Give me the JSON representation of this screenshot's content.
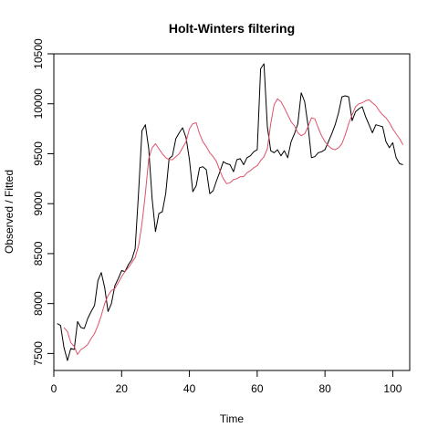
{
  "chart_data": {
    "type": "line",
    "title": "Holt-Winters filtering",
    "xlabel": "Time",
    "ylabel": "Observed / Fitted",
    "xlim": [
      0,
      105
    ],
    "ylim": [
      7330,
      10500
    ],
    "xticks": [
      0,
      20,
      40,
      60,
      80,
      100
    ],
    "yticks": [
      7500,
      8000,
      8500,
      9000,
      9500,
      10000,
      10500
    ],
    "grid": false,
    "legend": "none",
    "series": [
      {
        "color": "#000000",
        "x": [
          1,
          2,
          3,
          4,
          5,
          6,
          7,
          8,
          9,
          10,
          11,
          12,
          13,
          14,
          15,
          16,
          17,
          18,
          19,
          20,
          21,
          22,
          23,
          24,
          25,
          26,
          27,
          28,
          29,
          30,
          31,
          32,
          33,
          34,
          35,
          36,
          37,
          38,
          39,
          40,
          41,
          42,
          43,
          44,
          45,
          46,
          47,
          48,
          49,
          50,
          51,
          52,
          53,
          54,
          55,
          56,
          57,
          58,
          59,
          60,
          61,
          62,
          63,
          64,
          65,
          66,
          67,
          68,
          69,
          70,
          71,
          72,
          73,
          74,
          75,
          76,
          77,
          78,
          79,
          80,
          81,
          82,
          83,
          84,
          85,
          86,
          87,
          88,
          89,
          90,
          91,
          92,
          93,
          94,
          95,
          96,
          97,
          98,
          99,
          100,
          101,
          102,
          103
        ],
        "values": [
          7800,
          7780,
          7560,
          7430,
          7550,
          7540,
          7820,
          7760,
          7750,
          7850,
          7920,
          7980,
          8230,
          8310,
          8160,
          7920,
          8000,
          8180,
          8250,
          8330,
          8320,
          8390,
          8440,
          8550,
          9120,
          9730,
          9790,
          9550,
          9050,
          8720,
          8900,
          8920,
          9100,
          9450,
          9480,
          9650,
          9710,
          9760,
          9660,
          9440,
          9120,
          9180,
          9360,
          9370,
          9340,
          9100,
          9130,
          9230,
          9320,
          9420,
          9400,
          9390,
          9320,
          9440,
          9450,
          9390,
          9460,
          9480,
          9520,
          9540,
          10350,
          10400,
          9770,
          9530,
          9510,
          9540,
          9480,
          9530,
          9460,
          9620,
          9700,
          9800,
          10110,
          10020,
          9780,
          9460,
          9470,
          9510,
          9520,
          9540,
          9620,
          9700,
          9790,
          9910,
          10070,
          10080,
          10070,
          9830,
          9920,
          9950,
          9970,
          9870,
          9790,
          9710,
          9790,
          9780,
          9770,
          9620,
          9560,
          9610,
          9460,
          9400,
          9390
        ]
      },
      {
        "color": "#df536b",
        "x": [
          3,
          4,
          5,
          6,
          7,
          8,
          9,
          10,
          11,
          12,
          13,
          14,
          15,
          16,
          17,
          18,
          19,
          20,
          21,
          22,
          23,
          24,
          25,
          26,
          27,
          28,
          29,
          30,
          31,
          32,
          33,
          34,
          35,
          36,
          37,
          38,
          39,
          40,
          41,
          42,
          43,
          44,
          45,
          46,
          47,
          48,
          49,
          50,
          51,
          52,
          53,
          54,
          55,
          56,
          57,
          58,
          59,
          60,
          61,
          62,
          63,
          64,
          65,
          66,
          67,
          68,
          69,
          70,
          71,
          72,
          73,
          74,
          75,
          76,
          77,
          78,
          79,
          80,
          81,
          82,
          83,
          84,
          85,
          86,
          87,
          88,
          89,
          90,
          91,
          92,
          93,
          94,
          95,
          96,
          97,
          98,
          99,
          100,
          101,
          102,
          103
        ],
        "values": [
          7760,
          7720,
          7610,
          7570,
          7490,
          7540,
          7560,
          7590,
          7650,
          7700,
          7780,
          7880,
          8000,
          8080,
          8130,
          8150,
          8210,
          8270,
          8320,
          8360,
          8410,
          8460,
          8580,
          8800,
          9100,
          9450,
          9560,
          9600,
          9550,
          9500,
          9460,
          9440,
          9440,
          9470,
          9500,
          9560,
          9620,
          9750,
          9800,
          9810,
          9700,
          9620,
          9570,
          9510,
          9470,
          9420,
          9330,
          9250,
          9200,
          9210,
          9240,
          9250,
          9270,
          9270,
          9310,
          9330,
          9360,
          9380,
          9430,
          9470,
          9550,
          9800,
          9990,
          10050,
          10020,
          9960,
          9890,
          9820,
          9780,
          9710,
          9680,
          9700,
          9770,
          9860,
          9850,
          9760,
          9680,
          9620,
          9580,
          9550,
          9540,
          9560,
          9600,
          9690,
          9800,
          9890,
          9970,
          10000,
          10010,
          10030,
          10040,
          10010,
          9980,
          9930,
          9890,
          9860,
          9810,
          9750,
          9700,
          9650,
          9590
        ]
      }
    ]
  }
}
